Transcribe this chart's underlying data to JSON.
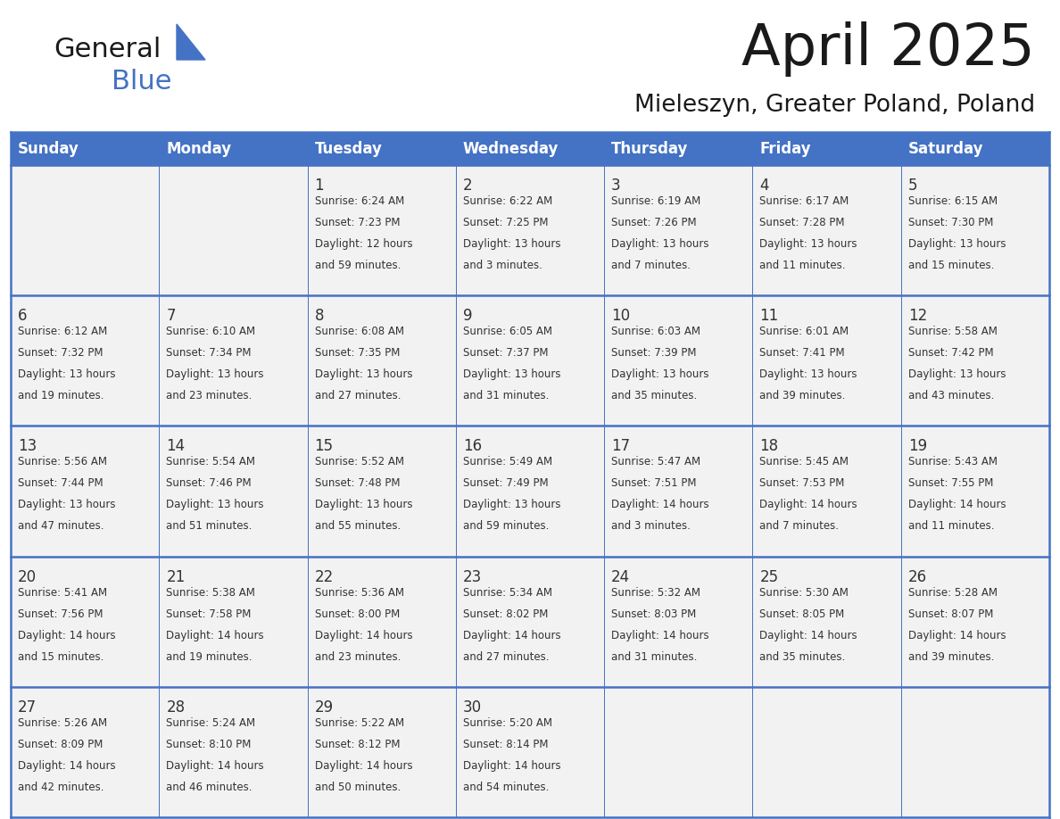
{
  "title": "April 2025",
  "subtitle": "Mieleszyn, Greater Poland, Poland",
  "days_of_week": [
    "Sunday",
    "Monday",
    "Tuesday",
    "Wednesday",
    "Thursday",
    "Friday",
    "Saturday"
  ],
  "header_bg": "#4472C4",
  "header_text": "#FFFFFF",
  "cell_bg": "#F2F2F2",
  "border_color": "#4472C4",
  "text_color": "#333333",
  "title_color": "#1a1a1a",
  "logo_color_general": "#1a1a1a",
  "logo_color_blue": "#4472C4",
  "logo_triangle_color": "#4472C4",
  "logo_text_general": "General",
  "logo_text_blue": "Blue",
  "calendar_data": [
    [
      {
        "day": "",
        "info": ""
      },
      {
        "day": "",
        "info": ""
      },
      {
        "day": "1",
        "info": "Sunrise: 6:24 AM\nSunset: 7:23 PM\nDaylight: 12 hours\nand 59 minutes."
      },
      {
        "day": "2",
        "info": "Sunrise: 6:22 AM\nSunset: 7:25 PM\nDaylight: 13 hours\nand 3 minutes."
      },
      {
        "day": "3",
        "info": "Sunrise: 6:19 AM\nSunset: 7:26 PM\nDaylight: 13 hours\nand 7 minutes."
      },
      {
        "day": "4",
        "info": "Sunrise: 6:17 AM\nSunset: 7:28 PM\nDaylight: 13 hours\nand 11 minutes."
      },
      {
        "day": "5",
        "info": "Sunrise: 6:15 AM\nSunset: 7:30 PM\nDaylight: 13 hours\nand 15 minutes."
      }
    ],
    [
      {
        "day": "6",
        "info": "Sunrise: 6:12 AM\nSunset: 7:32 PM\nDaylight: 13 hours\nand 19 minutes."
      },
      {
        "day": "7",
        "info": "Sunrise: 6:10 AM\nSunset: 7:34 PM\nDaylight: 13 hours\nand 23 minutes."
      },
      {
        "day": "8",
        "info": "Sunrise: 6:08 AM\nSunset: 7:35 PM\nDaylight: 13 hours\nand 27 minutes."
      },
      {
        "day": "9",
        "info": "Sunrise: 6:05 AM\nSunset: 7:37 PM\nDaylight: 13 hours\nand 31 minutes."
      },
      {
        "day": "10",
        "info": "Sunrise: 6:03 AM\nSunset: 7:39 PM\nDaylight: 13 hours\nand 35 minutes."
      },
      {
        "day": "11",
        "info": "Sunrise: 6:01 AM\nSunset: 7:41 PM\nDaylight: 13 hours\nand 39 minutes."
      },
      {
        "day": "12",
        "info": "Sunrise: 5:58 AM\nSunset: 7:42 PM\nDaylight: 13 hours\nand 43 minutes."
      }
    ],
    [
      {
        "day": "13",
        "info": "Sunrise: 5:56 AM\nSunset: 7:44 PM\nDaylight: 13 hours\nand 47 minutes."
      },
      {
        "day": "14",
        "info": "Sunrise: 5:54 AM\nSunset: 7:46 PM\nDaylight: 13 hours\nand 51 minutes."
      },
      {
        "day": "15",
        "info": "Sunrise: 5:52 AM\nSunset: 7:48 PM\nDaylight: 13 hours\nand 55 minutes."
      },
      {
        "day": "16",
        "info": "Sunrise: 5:49 AM\nSunset: 7:49 PM\nDaylight: 13 hours\nand 59 minutes."
      },
      {
        "day": "17",
        "info": "Sunrise: 5:47 AM\nSunset: 7:51 PM\nDaylight: 14 hours\nand 3 minutes."
      },
      {
        "day": "18",
        "info": "Sunrise: 5:45 AM\nSunset: 7:53 PM\nDaylight: 14 hours\nand 7 minutes."
      },
      {
        "day": "19",
        "info": "Sunrise: 5:43 AM\nSunset: 7:55 PM\nDaylight: 14 hours\nand 11 minutes."
      }
    ],
    [
      {
        "day": "20",
        "info": "Sunrise: 5:41 AM\nSunset: 7:56 PM\nDaylight: 14 hours\nand 15 minutes."
      },
      {
        "day": "21",
        "info": "Sunrise: 5:38 AM\nSunset: 7:58 PM\nDaylight: 14 hours\nand 19 minutes."
      },
      {
        "day": "22",
        "info": "Sunrise: 5:36 AM\nSunset: 8:00 PM\nDaylight: 14 hours\nand 23 minutes."
      },
      {
        "day": "23",
        "info": "Sunrise: 5:34 AM\nSunset: 8:02 PM\nDaylight: 14 hours\nand 27 minutes."
      },
      {
        "day": "24",
        "info": "Sunrise: 5:32 AM\nSunset: 8:03 PM\nDaylight: 14 hours\nand 31 minutes."
      },
      {
        "day": "25",
        "info": "Sunrise: 5:30 AM\nSunset: 8:05 PM\nDaylight: 14 hours\nand 35 minutes."
      },
      {
        "day": "26",
        "info": "Sunrise: 5:28 AM\nSunset: 8:07 PM\nDaylight: 14 hours\nand 39 minutes."
      }
    ],
    [
      {
        "day": "27",
        "info": "Sunrise: 5:26 AM\nSunset: 8:09 PM\nDaylight: 14 hours\nand 42 minutes."
      },
      {
        "day": "28",
        "info": "Sunrise: 5:24 AM\nSunset: 8:10 PM\nDaylight: 14 hours\nand 46 minutes."
      },
      {
        "day": "29",
        "info": "Sunrise: 5:22 AM\nSunset: 8:12 PM\nDaylight: 14 hours\nand 50 minutes."
      },
      {
        "day": "30",
        "info": "Sunrise: 5:20 AM\nSunset: 8:14 PM\nDaylight: 14 hours\nand 54 minutes."
      },
      {
        "day": "",
        "info": ""
      },
      {
        "day": "",
        "info": ""
      },
      {
        "day": "",
        "info": ""
      }
    ]
  ]
}
